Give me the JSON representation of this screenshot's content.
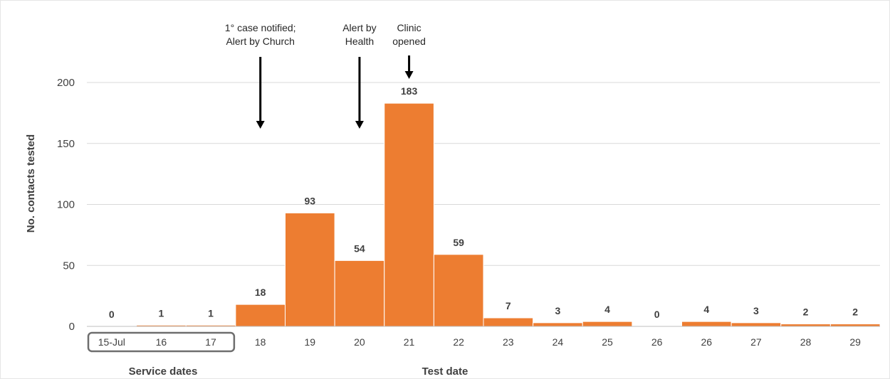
{
  "chart_data": {
    "type": "bar",
    "categories": [
      "15-Jul",
      "16",
      "17",
      "18",
      "19",
      "20",
      "21",
      "22",
      "23",
      "24",
      "25",
      "26",
      "26",
      "27",
      "28",
      "29"
    ],
    "values": [
      0,
      1,
      1,
      18,
      93,
      54,
      183,
      59,
      7,
      3,
      4,
      0,
      4,
      3,
      2,
      2
    ],
    "bar_color": "#ED7D31",
    "ylabel": "No. contacts tested",
    "xlabel": "Test date",
    "ylim": [
      0,
      200
    ],
    "yticks": [
      0,
      50,
      100,
      150,
      200
    ],
    "grid": true,
    "service_dates_label": "Service dates",
    "service_dates_categories": [
      "15-Jul",
      "16",
      "17"
    ],
    "annotations": [
      {
        "lines": [
          "1° case notified;",
          "Alert by Church"
        ],
        "category_index": 3
      },
      {
        "lines": [
          "Alert by",
          "Health"
        ],
        "category_index": 5
      },
      {
        "lines": [
          "Clinic",
          "opened"
        ],
        "category_index": 6
      }
    ]
  }
}
